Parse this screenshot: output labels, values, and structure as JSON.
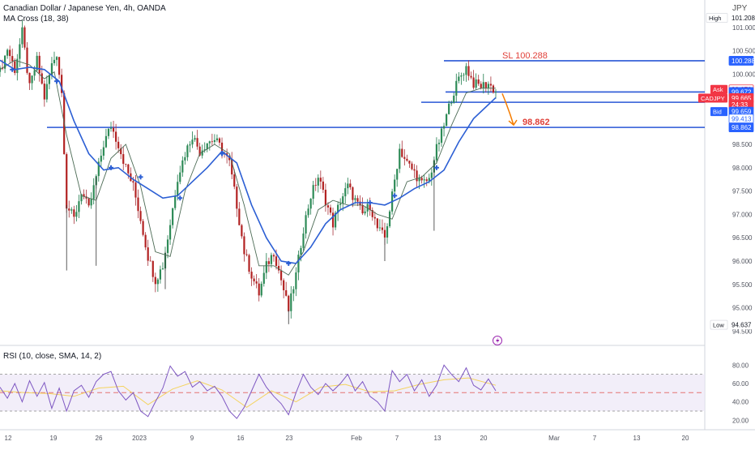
{
  "legend": {
    "symbol": "Canadian Dollar / Japanese Yen, 4h, OANDA",
    "indicator": "MA Cross (18, 38)",
    "rsi": "RSI (10, close, SMA, 14, 2)"
  },
  "currency": "JPY",
  "price_labels": [
    {
      "tag": "High",
      "value": "101.208",
      "price": 101.208,
      "style": "plain"
    },
    {
      "tag": "",
      "value": "100.288",
      "price": 100.288,
      "style": "blue"
    },
    {
      "tag": "Ask",
      "value": "99.676",
      "price": 99.676,
      "style": "red-outline"
    },
    {
      "tag": "",
      "value": "99.672",
      "price": 99.62,
      "style": "blue"
    },
    {
      "tag": "CADJPY",
      "value": "99.665",
      "price": 99.49,
      "style": "red"
    },
    {
      "tag": "",
      "value": "24:33",
      "price": 99.35,
      "style": "red"
    },
    {
      "tag": "Bid",
      "value": "99.659",
      "price": 99.2,
      "style": "blue"
    },
    {
      "tag": "",
      "value": "99.413",
      "price": 99.05,
      "style": "blue-outline"
    },
    {
      "tag": "",
      "value": "98.862",
      "price": 98.862,
      "style": "blue"
    },
    {
      "tag": "Low",
      "value": "94.637",
      "price": 94.637,
      "style": "plain"
    }
  ],
  "annotations": {
    "sl_label": "SL 100.288",
    "tp_label": "98.862"
  },
  "chart_data": [
    {
      "type": "candlestick",
      "title": "Canadian Dollar / Japanese Yen, 4h, OANDA",
      "ylim": [
        94.3,
        101.45
      ],
      "price_ticks": [
        "101.000",
        "100.500",
        "100.000",
        "99.500",
        "99.000",
        "98.500",
        "98.000",
        "97.500",
        "97.000",
        "96.500",
        "96.000",
        "95.500",
        "95.000",
        "94.500"
      ],
      "x_ticks": [
        "12",
        "19",
        "26",
        "2023",
        "9",
        "16",
        "23",
        "Feb",
        "7",
        "13",
        "20",
        "Mar",
        "7",
        "13",
        "20"
      ],
      "horizontal_levels": [
        {
          "name": "SL",
          "price": 100.288
        },
        {
          "name": "entry",
          "price": 99.62
        },
        {
          "name": "support",
          "price": 99.4
        },
        {
          "name": "TP",
          "price": 98.862
        }
      ],
      "path_points": [
        [
          0,
          100.05
        ],
        [
          3,
          100.55
        ],
        [
          6,
          100.1
        ],
        [
          9,
          100.9
        ],
        [
          12,
          99.7
        ],
        [
          15,
          100.3
        ],
        [
          18,
          99.5
        ],
        [
          21,
          100.2
        ],
        [
          23,
          100.45
        ],
        [
          25,
          99.6
        ],
        [
          27,
          97.2
        ],
        [
          30,
          96.9
        ],
        [
          33,
          97.5
        ],
        [
          36,
          97.1
        ],
        [
          39,
          97.8
        ],
        [
          42,
          98.5
        ],
        [
          45,
          98.9
        ],
        [
          48,
          98.5
        ],
        [
          51,
          98.0
        ],
        [
          54,
          97.6
        ],
        [
          57,
          96.9
        ],
        [
          60,
          96.1
        ],
        [
          63,
          95.6
        ],
        [
          66,
          95.9
        ],
        [
          69,
          96.8
        ],
        [
          72,
          97.8
        ],
        [
          75,
          98.3
        ],
        [
          78,
          98.7
        ],
        [
          81,
          98.35
        ],
        [
          84,
          98.55
        ],
        [
          87,
          98.6
        ],
        [
          90,
          98.4
        ],
        [
          93,
          98.1
        ],
        [
          96,
          97.2
        ],
        [
          99,
          96.2
        ],
        [
          102,
          95.7
        ],
        [
          105,
          95.3
        ],
        [
          108,
          95.9
        ],
        [
          111,
          96.2
        ],
        [
          114,
          95.6
        ],
        [
          117,
          94.95
        ],
        [
          120,
          95.7
        ],
        [
          123,
          96.7
        ],
        [
          126,
          97.4
        ],
        [
          129,
          97.8
        ],
        [
          132,
          97.3
        ],
        [
          135,
          96.8
        ],
        [
          138,
          97.3
        ],
        [
          141,
          97.6
        ],
        [
          144,
          97.3
        ],
        [
          147,
          97.0
        ],
        [
          150,
          97.2
        ],
        [
          153,
          96.7
        ],
        [
          156,
          96.5
        ],
        [
          159,
          97.4
        ],
        [
          162,
          98.4
        ],
        [
          165,
          98.1
        ],
        [
          168,
          97.9
        ],
        [
          171,
          97.65
        ],
        [
          174,
          97.75
        ],
        [
          177,
          98.4
        ],
        [
          180,
          98.9
        ],
        [
          183,
          99.5
        ],
        [
          186,
          99.9
        ],
        [
          189,
          100.15
        ],
        [
          192,
          99.8
        ],
        [
          195,
          99.75
        ],
        [
          198,
          99.8
        ],
        [
          201,
          99.62
        ]
      ],
      "ma_fast_points": [
        [
          0,
          100.1
        ],
        [
          6,
          100.3
        ],
        [
          12,
          100.2
        ],
        [
          18,
          99.9
        ],
        [
          22,
          100.05
        ],
        [
          27,
          98.7
        ],
        [
          33,
          97.4
        ],
        [
          39,
          97.3
        ],
        [
          45,
          98.2
        ],
        [
          51,
          98.5
        ],
        [
          57,
          97.6
        ],
        [
          63,
          96.2
        ],
        [
          69,
          96.1
        ],
        [
          75,
          97.5
        ],
        [
          81,
          98.3
        ],
        [
          87,
          98.5
        ],
        [
          93,
          98.3
        ],
        [
          99,
          97.2
        ],
        [
          105,
          95.9
        ],
        [
          111,
          95.9
        ],
        [
          117,
          95.7
        ],
        [
          123,
          96.2
        ],
        [
          129,
          97.1
        ],
        [
          135,
          97.3
        ],
        [
          141,
          97.2
        ],
        [
          147,
          97.2
        ],
        [
          153,
          97.0
        ],
        [
          159,
          96.9
        ],
        [
          165,
          97.7
        ],
        [
          171,
          97.8
        ],
        [
          177,
          98.1
        ],
        [
          183,
          98.9
        ],
        [
          189,
          99.6
        ],
        [
          195,
          99.7
        ],
        [
          201,
          99.7
        ]
      ],
      "ma_slow_points": [
        [
          0,
          100.3
        ],
        [
          6,
          100.1
        ],
        [
          12,
          100.15
        ],
        [
          18,
          100.1
        ],
        [
          24,
          99.85
        ],
        [
          30,
          99.0
        ],
        [
          36,
          98.3
        ],
        [
          42,
          97.95
        ],
        [
          48,
          98.0
        ],
        [
          54,
          97.75
        ],
        [
          60,
          97.55
        ],
        [
          66,
          97.35
        ],
        [
          72,
          97.4
        ],
        [
          78,
          97.7
        ],
        [
          84,
          98.0
        ],
        [
          90,
          98.35
        ],
        [
          96,
          98.1
        ],
        [
          102,
          97.2
        ],
        [
          108,
          96.5
        ],
        [
          114,
          96.0
        ],
        [
          120,
          95.95
        ],
        [
          126,
          96.3
        ],
        [
          132,
          96.8
        ],
        [
          138,
          97.1
        ],
        [
          144,
          97.25
        ],
        [
          150,
          97.25
        ],
        [
          156,
          97.2
        ],
        [
          162,
          97.35
        ],
        [
          168,
          97.55
        ],
        [
          174,
          97.7
        ],
        [
          180,
          97.95
        ],
        [
          186,
          98.55
        ],
        [
          192,
          99.05
        ],
        [
          198,
          99.35
        ],
        [
          201,
          99.5
        ]
      ],
      "cross_markers": [
        [
          5,
          100.1
        ],
        [
          23,
          99.85
        ],
        [
          45,
          98.0
        ],
        [
          57,
          97.8
        ],
        [
          73,
          97.35
        ],
        [
          90,
          98.3
        ],
        [
          117,
          95.95
        ],
        [
          150,
          97.25
        ],
        [
          160,
          97.4
        ],
        [
          177,
          98.0
        ]
      ],
      "spike_wicks": [
        [
          27,
          95.8
        ],
        [
          39,
          95.9
        ],
        [
          67,
          95.4
        ],
        [
          117,
          94.65
        ],
        [
          156,
          96.0
        ],
        [
          176,
          96.65
        ]
      ]
    },
    {
      "type": "line",
      "title": "RSI (10, close, SMA, 14, 2)",
      "ylim": [
        15,
        82
      ],
      "y_ticks": [
        "80.00",
        "60.00",
        "40.00",
        "20.00"
      ],
      "bands": {
        "upper": 70,
        "mid": 50,
        "lower": 30
      },
      "rsi_points": [
        [
          0,
          56
        ],
        [
          3,
          44
        ],
        [
          6,
          60
        ],
        [
          9,
          40
        ],
        [
          12,
          63
        ],
        [
          15,
          46
        ],
        [
          18,
          61
        ],
        [
          21,
          33
        ],
        [
          24,
          55
        ],
        [
          27,
          30
        ],
        [
          30,
          52
        ],
        [
          33,
          58
        ],
        [
          36,
          45
        ],
        [
          39,
          62
        ],
        [
          42,
          70
        ],
        [
          45,
          73
        ],
        [
          48,
          52
        ],
        [
          51,
          42
        ],
        [
          54,
          50
        ],
        [
          57,
          30
        ],
        [
          60,
          24
        ],
        [
          63,
          40
        ],
        [
          66,
          55
        ],
        [
          69,
          79
        ],
        [
          72,
          68
        ],
        [
          75,
          73
        ],
        [
          78,
          56
        ],
        [
          81,
          62
        ],
        [
          84,
          52
        ],
        [
          87,
          57
        ],
        [
          90,
          46
        ],
        [
          93,
          30
        ],
        [
          96,
          22
        ],
        [
          99,
          34
        ],
        [
          102,
          52
        ],
        [
          105,
          70
        ],
        [
          108,
          56
        ],
        [
          111,
          46
        ],
        [
          114,
          38
        ],
        [
          117,
          26
        ],
        [
          120,
          50
        ],
        [
          123,
          70
        ],
        [
          126,
          56
        ],
        [
          129,
          48
        ],
        [
          132,
          60
        ],
        [
          135,
          52
        ],
        [
          138,
          60
        ],
        [
          141,
          70
        ],
        [
          144,
          52
        ],
        [
          147,
          62
        ],
        [
          150,
          46
        ],
        [
          153,
          40
        ],
        [
          156,
          30
        ],
        [
          159,
          74
        ],
        [
          162,
          62
        ],
        [
          165,
          70
        ],
        [
          168,
          52
        ],
        [
          171,
          64
        ],
        [
          174,
          46
        ],
        [
          177,
          58
        ],
        [
          180,
          80
        ],
        [
          183,
          70
        ],
        [
          186,
          62
        ],
        [
          189,
          77
        ],
        [
          192,
          58
        ],
        [
          195,
          53
        ],
        [
          198,
          65
        ],
        [
          201,
          52
        ]
      ],
      "rsi_sma_points": [
        [
          0,
          52
        ],
        [
          10,
          50
        ],
        [
          20,
          49
        ],
        [
          30,
          46
        ],
        [
          40,
          55
        ],
        [
          50,
          57
        ],
        [
          60,
          37
        ],
        [
          70,
          54
        ],
        [
          80,
          63
        ],
        [
          90,
          53
        ],
        [
          100,
          34
        ],
        [
          110,
          52
        ],
        [
          120,
          40
        ],
        [
          130,
          56
        ],
        [
          140,
          59
        ],
        [
          150,
          51
        ],
        [
          160,
          52
        ],
        [
          170,
          59
        ],
        [
          180,
          64
        ],
        [
          190,
          66
        ],
        [
          201,
          58
        ]
      ]
    }
  ]
}
